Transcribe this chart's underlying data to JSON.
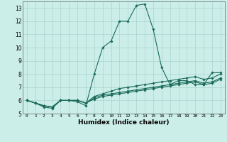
{
  "xlabel": "Humidex (Indice chaleur)",
  "background_color": "#cceee8",
  "grid_color": "#aad4ce",
  "line_color": "#1a6b5a",
  "xlim": [
    -0.5,
    23.5
  ],
  "ylim": [
    5,
    13.5
  ],
  "yticks": [
    5,
    6,
    7,
    8,
    9,
    10,
    11,
    12,
    13
  ],
  "xticks": [
    0,
    1,
    2,
    3,
    4,
    5,
    6,
    7,
    8,
    9,
    10,
    11,
    12,
    13,
    14,
    15,
    16,
    17,
    18,
    19,
    20,
    21,
    22,
    23
  ],
  "series": [
    [
      6.0,
      5.8,
      5.5,
      5.4,
      6.0,
      6.0,
      5.9,
      5.6,
      8.0,
      10.0,
      10.5,
      12.0,
      12.0,
      13.2,
      13.3,
      11.4,
      8.5,
      7.2,
      7.5,
      7.5,
      7.2,
      7.2,
      8.1,
      8.1
    ],
    [
      6.0,
      5.8,
      5.6,
      5.5,
      6.0,
      6.0,
      6.0,
      5.8,
      6.3,
      6.5,
      6.7,
      6.9,
      7.0,
      7.1,
      7.2,
      7.3,
      7.4,
      7.5,
      7.6,
      7.7,
      7.8,
      7.6,
      7.7,
      8.0
    ],
    [
      6.0,
      5.8,
      5.6,
      5.5,
      6.0,
      6.0,
      6.0,
      5.8,
      6.2,
      6.4,
      6.5,
      6.6,
      6.7,
      6.8,
      6.9,
      7.0,
      7.1,
      7.2,
      7.3,
      7.4,
      7.5,
      7.3,
      7.4,
      7.7
    ],
    [
      6.0,
      5.8,
      5.6,
      5.5,
      6.0,
      6.0,
      6.0,
      5.8,
      6.1,
      6.3,
      6.4,
      6.5,
      6.6,
      6.7,
      6.8,
      6.9,
      7.0,
      7.1,
      7.2,
      7.3,
      7.4,
      7.2,
      7.3,
      7.6
    ]
  ]
}
